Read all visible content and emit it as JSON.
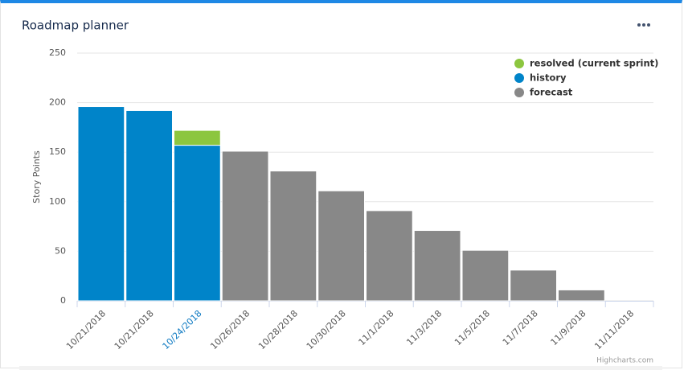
{
  "header": {
    "title": "Roadmap planner"
  },
  "chart_data": {
    "type": "stacked_bar",
    "y_axis_label": "Story Points",
    "credits": "Highcharts.com",
    "categories": [
      "10/21/2018",
      "10/21/2018",
      "10/24/2018",
      "10/26/2018",
      "10/28/2018",
      "10/30/2018",
      "11/1/2018",
      "11/3/2018",
      "11/5/2018",
      "11/7/2018",
      "11/9/2018",
      "11/11/2018"
    ],
    "series": [
      {
        "name": "resolved (current sprint)",
        "color": "#8cc63f",
        "values": [
          null,
          null,
          15,
          null,
          null,
          null,
          null,
          null,
          null,
          null,
          null,
          null
        ]
      },
      {
        "name": "history",
        "color": "#0084c9",
        "values": [
          196,
          192,
          157,
          null,
          null,
          null,
          null,
          null,
          null,
          null,
          null,
          null
        ]
      },
      {
        "name": "forecast",
        "color": "#888888",
        "values": [
          null,
          null,
          null,
          151,
          131,
          111,
          91,
          71,
          51,
          31,
          11,
          0
        ]
      }
    ],
    "ylim": [
      0,
      250
    ],
    "yticks": [
      0,
      50,
      100,
      150,
      200,
      250
    ],
    "grid": true
  }
}
